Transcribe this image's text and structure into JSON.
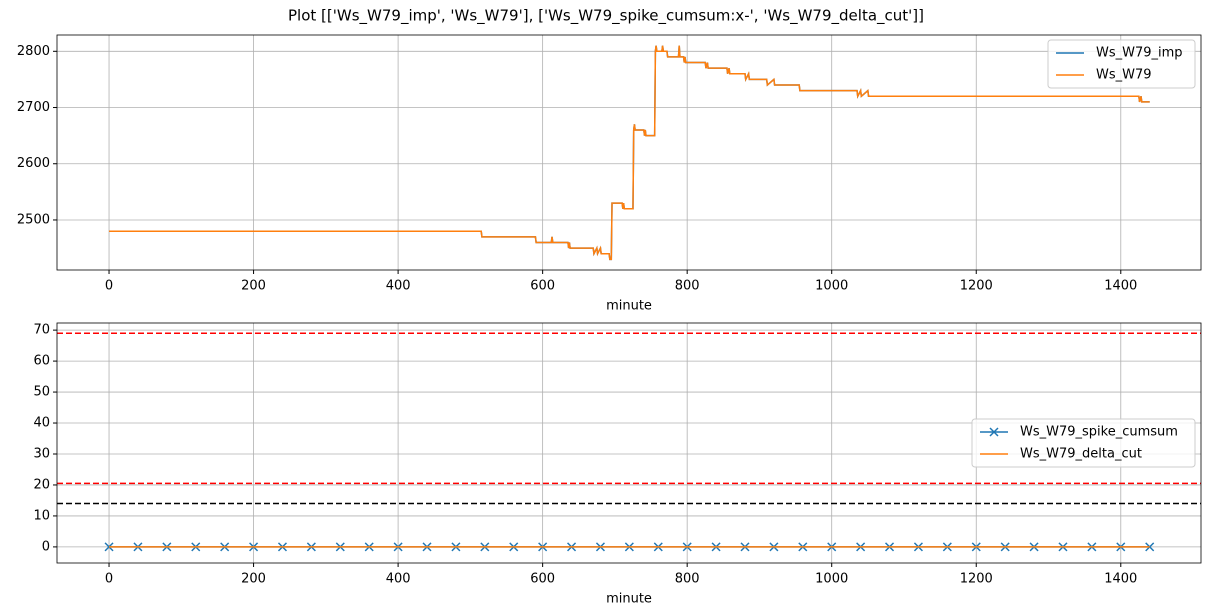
{
  "chart_data": [
    {
      "type": "line",
      "title": "Plot [['Ws_W79_imp', 'Ws_W79'], ['Ws_W79_spike_cumsum:x-', 'Ws_W79_delta_cut']]",
      "xlabel": "minute",
      "xlim": [
        -72,
        1511
      ],
      "xticks": [
        0,
        200,
        400,
        600,
        800,
        1000,
        1200,
        1400
      ],
      "ylim": [
        2411,
        2829
      ],
      "yticks": [
        2500,
        2600,
        2700,
        2800
      ],
      "grid": true,
      "legend": "upper right",
      "x": [
        0,
        515,
        516,
        590,
        591,
        612,
        613,
        614,
        635,
        636,
        637,
        638,
        670,
        671,
        675,
        676,
        680,
        681,
        692,
        693,
        695,
        696,
        710,
        711,
        712,
        713,
        725,
        726,
        727,
        728,
        740,
        741,
        742,
        743,
        755,
        756,
        757,
        758,
        765,
        766,
        767,
        772,
        773,
        788,
        789,
        790,
        795,
        796,
        797,
        798,
        825,
        826,
        828,
        829,
        855,
        856,
        858,
        859,
        880,
        881,
        885,
        886,
        910,
        911,
        920,
        921,
        955,
        956,
        1035,
        1036,
        1040,
        1041,
        1050,
        1051,
        1425,
        1426,
        1428,
        1429,
        1440
      ],
      "series": [
        {
          "name": "Ws_W79_imp",
          "color": "#1f77b4",
          "values": [
            2480,
            2480,
            2470,
            2470,
            2460,
            2460,
            2470,
            2460,
            2460,
            2450,
            2460,
            2450,
            2450,
            2440,
            2450,
            2440,
            2450,
            2440,
            2440,
            2430,
            2430,
            2530,
            2530,
            2520,
            2530,
            2520,
            2520,
            2660,
            2670,
            2660,
            2660,
            2650,
            2660,
            2650,
            2650,
            2800,
            2810,
            2800,
            2800,
            2810,
            2800,
            2800,
            2790,
            2790,
            2810,
            2790,
            2790,
            2780,
            2790,
            2780,
            2780,
            2770,
            2780,
            2770,
            2770,
            2760,
            2770,
            2760,
            2760,
            2750,
            2760,
            2750,
            2750,
            2740,
            2750,
            2740,
            2740,
            2730,
            2730,
            2720,
            2730,
            2720,
            2730,
            2720,
            2720,
            2710,
            2720,
            2710,
            2710
          ]
        },
        {
          "name": "Ws_W79",
          "color": "#ff7f0e",
          "values": [
            2480,
            2480,
            2470,
            2470,
            2460,
            2460,
            2470,
            2460,
            2460,
            2450,
            2460,
            2450,
            2450,
            2440,
            2450,
            2440,
            2450,
            2440,
            2440,
            2430,
            2430,
            2530,
            2530,
            2520,
            2530,
            2520,
            2520,
            2660,
            2670,
            2660,
            2660,
            2650,
            2660,
            2650,
            2650,
            2800,
            2810,
            2800,
            2800,
            2810,
            2800,
            2800,
            2790,
            2790,
            2810,
            2790,
            2790,
            2780,
            2790,
            2780,
            2780,
            2770,
            2780,
            2770,
            2770,
            2760,
            2770,
            2760,
            2760,
            2750,
            2760,
            2750,
            2750,
            2740,
            2750,
            2740,
            2740,
            2730,
            2730,
            2720,
            2730,
            2720,
            2730,
            2720,
            2720,
            2710,
            2720,
            2710,
            2710
          ]
        }
      ]
    },
    {
      "type": "line",
      "xlabel": "minute",
      "xlim": [
        -72,
        1511
      ],
      "xticks": [
        0,
        200,
        400,
        600,
        800,
        1000,
        1200,
        1400
      ],
      "ylim": [
        -5.2,
        72.3
      ],
      "yticks": [
        0,
        10,
        20,
        30,
        40,
        50,
        60,
        70
      ],
      "grid": true,
      "legend": "center right",
      "hlines": [
        {
          "value": 69,
          "color": "#ff0000"
        },
        {
          "value": 20.5,
          "color": "#ff0000"
        },
        {
          "value": 14,
          "color": "#000000"
        }
      ],
      "x": [
        0,
        40,
        80,
        120,
        160,
        200,
        240,
        280,
        320,
        360,
        400,
        440,
        480,
        520,
        560,
        600,
        640,
        680,
        720,
        760,
        800,
        840,
        880,
        920,
        960,
        1000,
        1040,
        1080,
        1120,
        1160,
        1200,
        1240,
        1280,
        1320,
        1360,
        1400,
        1440
      ],
      "series": [
        {
          "name": "Ws_W79_spike_cumsum",
          "color": "#1f77b4",
          "marker": "x",
          "values": [
            0,
            0,
            0,
            0,
            0,
            0,
            0,
            0,
            0,
            0,
            0,
            0,
            0,
            0,
            0,
            0,
            0,
            0,
            0,
            0,
            0,
            0,
            0,
            0,
            0,
            0,
            0,
            0,
            0,
            0,
            0,
            0,
            0,
            0,
            0,
            0,
            0
          ]
        },
        {
          "name": "Ws_W79_delta_cut",
          "color": "#ff7f0e",
          "values": [
            0,
            0,
            0,
            0,
            0,
            0,
            0,
            0,
            0,
            0,
            0,
            0,
            0,
            0,
            0,
            0,
            0,
            0,
            0,
            0,
            0,
            0,
            0,
            0,
            0,
            0,
            0,
            0,
            0,
            0,
            0,
            0,
            0,
            0,
            0,
            0,
            0
          ]
        }
      ]
    }
  ]
}
